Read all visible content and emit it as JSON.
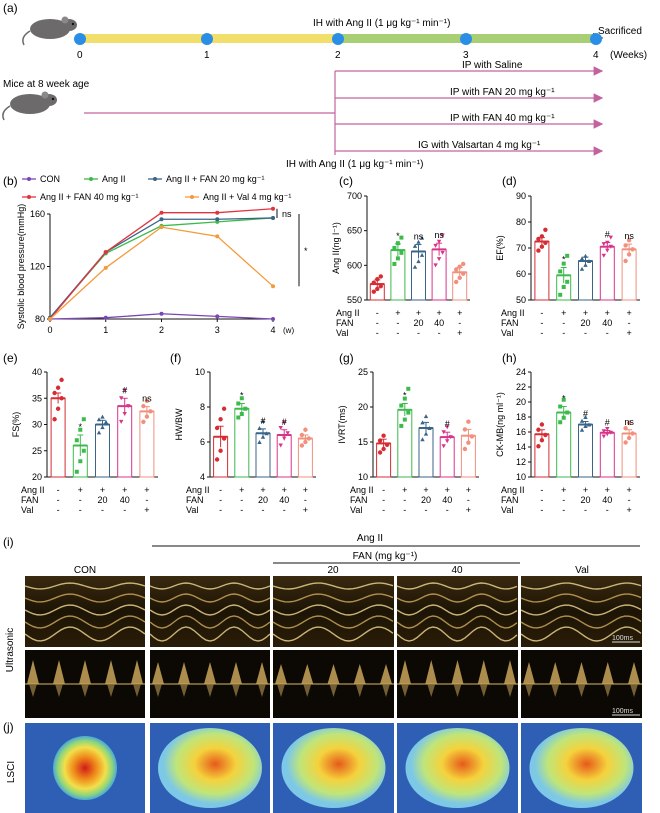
{
  "panel_labels": {
    "a": "(a)",
    "b": "(b)",
    "c": "(c)",
    "d": "(d)",
    "e": "(e)",
    "f": "(f)",
    "g": "(g)",
    "h": "(h)",
    "i": "(i)",
    "j": "(j)"
  },
  "timeline": {
    "ih_label": "IH with Ang II  (1 μg kg⁻¹ min⁻¹)",
    "sacrificed": "Sacrificed",
    "weeks": [
      "0",
      "1",
      "2",
      "3",
      "4"
    ],
    "weeks_unit": "(Weeks)",
    "mice_label": "Mice at 8 week age",
    "treatments": [
      "IP with Saline",
      "IP with FAN 20 mg kg⁻¹",
      "IP with FAN 40 mg kg⁻¹",
      "IG with Valsartan 4 mg kg⁻¹"
    ],
    "ih_label_bottom": "IH with Ang II  (1 μg kg⁻¹ min⁻¹)",
    "colors": {
      "timeline": "#111111",
      "yellow": "#f1de6b",
      "green": "#a9cf74",
      "dot": "#2b8ee6",
      "arrow": "#c2639e"
    }
  },
  "group_rows": {
    "row_labels": [
      "Ang II",
      "FAN",
      "Val"
    ],
    "columns": [
      [
        "-",
        "-",
        "-"
      ],
      [
        "+",
        "-",
        "-"
      ],
      [
        "+",
        "20",
        "-"
      ],
      [
        "+",
        "40",
        "-"
      ],
      [
        "+",
        "-",
        "+"
      ]
    ]
  },
  "chart_data": [
    {
      "id": "b",
      "type": "line",
      "x": [
        0,
        1,
        2,
        3,
        4
      ],
      "xlabel": "(w)",
      "ylabel": "Systolic blood pressure(mmHg)",
      "ylim": [
        80,
        160
      ],
      "yticks": [
        80,
        120,
        160
      ],
      "legend": [
        "CON",
        "Ang II",
        "Ang II + FAN 20 mg kg⁻¹",
        "Ang II + FAN 40 mg kg⁻¹",
        "Ang II + Val 4 mg kg⁻¹"
      ],
      "series": [
        {
          "name": "CON",
          "color": "#7b45b5",
          "values": [
            80,
            81,
            84,
            82,
            80
          ]
        },
        {
          "name": "Ang II",
          "color": "#3cba4b",
          "values": [
            81,
            130,
            151,
            154,
            157
          ]
        },
        {
          "name": "Ang II + FAN 20 mg kg⁻¹",
          "color": "#3a6488",
          "values": [
            81,
            131,
            156,
            156,
            157
          ]
        },
        {
          "name": "Ang II + FAN 40 mg kg⁻¹",
          "color": "#e0343f",
          "values": [
            80,
            131,
            161,
            161,
            164
          ]
        },
        {
          "name": "Ang II + Val 4 mg kg⁻¹",
          "color": "#f49a3b",
          "values": [
            80,
            119,
            150,
            143,
            105
          ]
        }
      ],
      "annotations": [
        "ns",
        "*"
      ]
    },
    {
      "id": "c",
      "type": "bar",
      "ylabel": "Ang II(ng l⁻¹)",
      "ylim": [
        550,
        700
      ],
      "yticks": [
        550,
        600,
        650,
        700
      ],
      "values": [
        573,
        622,
        620,
        623,
        590
      ],
      "errors": [
        6,
        9,
        10,
        9,
        7
      ],
      "points": [
        [
          562,
          566,
          570,
          575,
          580,
          584
        ],
        [
          602,
          610,
          618,
          625,
          632,
          640
        ],
        [
          598,
          606,
          615,
          628,
          634,
          640
        ],
        [
          600,
          609,
          618,
          628,
          634,
          643
        ],
        [
          576,
          582,
          588,
          594,
          598,
          602
        ]
      ],
      "sig": [
        "",
        "*",
        "ns",
        "ns",
        ""
      ]
    },
    {
      "id": "d",
      "type": "bar",
      "ylabel": "EF(%)",
      "ylim": [
        50,
        90
      ],
      "yticks": [
        50,
        60,
        70,
        80,
        90
      ],
      "values": [
        72.5,
        59.5,
        65,
        70.5,
        69.5
      ],
      "errors": [
        1.5,
        3,
        1.5,
        1.6,
        2
      ],
      "points": [
        [
          69,
          70.5,
          72,
          73.5,
          74.5,
          77
        ],
        [
          52,
          55,
          57,
          61,
          64,
          67
        ],
        [
          62,
          63.5,
          65,
          66,
          67
        ],
        [
          67,
          69,
          70.5,
          71.5,
          72,
          74
        ],
        [
          65,
          67.5,
          69.5,
          71,
          73
        ]
      ],
      "sig": [
        "",
        "*",
        "",
        "#",
        "ns"
      ]
    },
    {
      "id": "e",
      "type": "bar",
      "ylabel": "FS(%)",
      "ylim": [
        20,
        40
      ],
      "yticks": [
        20,
        25,
        30,
        35,
        40
      ],
      "values": [
        35,
        26,
        30,
        33.5,
        32.5
      ],
      "errors": [
        1,
        2,
        0.8,
        1.5,
        0.9
      ],
      "points": [
        [
          31,
          33,
          35,
          36,
          37,
          38.5
        ],
        [
          21,
          23,
          25,
          27,
          29,
          31
        ],
        [
          28.5,
          29.5,
          30.5,
          31,
          31.5
        ],
        [
          30.5,
          32,
          33.5,
          35,
          36.5
        ],
        [
          30.5,
          31.5,
          32.5,
          33.5,
          34.5
        ]
      ],
      "sig": [
        "",
        "*",
        "",
        "#",
        "ns"
      ]
    },
    {
      "id": "f",
      "type": "bar",
      "ylabel": "HW/BW",
      "ylim": [
        4,
        10
      ],
      "yticks": [
        4,
        6,
        8,
        10
      ],
      "values": [
        6.3,
        7.9,
        6.5,
        6.4,
        6.2
      ],
      "errors": [
        0.6,
        0.3,
        0.25,
        0.3,
        0.2
      ],
      "points": [
        [
          5,
          5.5,
          6.2,
          6.8,
          7.3,
          7.9
        ],
        [
          7.4,
          7.6,
          7.9,
          8.2,
          8.5
        ],
        [
          6,
          6.3,
          6.5,
          6.8,
          7.2
        ],
        [
          5.8,
          6.2,
          6.5,
          6.8,
          7.1
        ],
        [
          5.8,
          6,
          6.2,
          6.4,
          6.7
        ]
      ],
      "sig": [
        "",
        "*",
        "#",
        "#",
        ""
      ]
    },
    {
      "id": "g",
      "type": "bar",
      "ylabel": "IVRT(ms)",
      "ylim": [
        10,
        25
      ],
      "yticks": [
        10,
        15,
        20,
        25
      ],
      "values": [
        14.8,
        19.6,
        17,
        15.7,
        15.9
      ],
      "errors": [
        0.6,
        0.9,
        0.8,
        0.7,
        0.9
      ],
      "points": [
        [
          13.5,
          14,
          14.6,
          15.2,
          15.9
        ],
        [
          17.3,
          18.2,
          19.2,
          20.2,
          21.2,
          22.6
        ],
        [
          15.4,
          16.2,
          17,
          17.8,
          18.7
        ],
        [
          14.4,
          15.1,
          15.7,
          16.4,
          17.1
        ],
        [
          14,
          14.9,
          15.8,
          16.8,
          17.9
        ]
      ],
      "sig": [
        "",
        "*",
        "",
        "#",
        ""
      ]
    },
    {
      "id": "h",
      "type": "bar",
      "ylabel": "CK-MB(ng ml⁻¹)",
      "ylim": [
        10,
        24
      ],
      "yticks": [
        10,
        12,
        14,
        16,
        18,
        20,
        22,
        24
      ],
      "values": [
        15.7,
        18.6,
        17,
        15.9,
        15.8
      ],
      "errors": [
        0.6,
        0.8,
        0.4,
        0.3,
        0.5
      ],
      "points": [
        [
          14.1,
          14.9,
          15.6,
          16.3,
          17
        ],
        [
          17.3,
          17.9,
          18.6,
          19.4,
          20.3
        ],
        [
          16.3,
          16.8,
          17,
          17.5,
          18
        ],
        [
          15.4,
          15.7,
          15.9,
          16.1,
          16.4
        ],
        [
          14.6,
          15.2,
          15.8,
          16.5,
          17.2
        ]
      ],
      "sig": [
        "",
        "*",
        "#",
        "#",
        "ns"
      ]
    }
  ],
  "bar_colors": [
    "#d62d35",
    "#3cba4b",
    "#3a6488",
    "#d8348a",
    "#f0907d"
  ],
  "panel_i": {
    "top_group": "Ang II",
    "fan_label": "FAN  (mg kg⁻¹)",
    "columns": [
      "CON",
      "",
      "20",
      "40",
      "Val"
    ],
    "row_labels": [
      "Ultrasonic"
    ],
    "scale": [
      "100ms",
      "100ms"
    ]
  },
  "panel_j": {
    "row_label": "LSCI"
  }
}
